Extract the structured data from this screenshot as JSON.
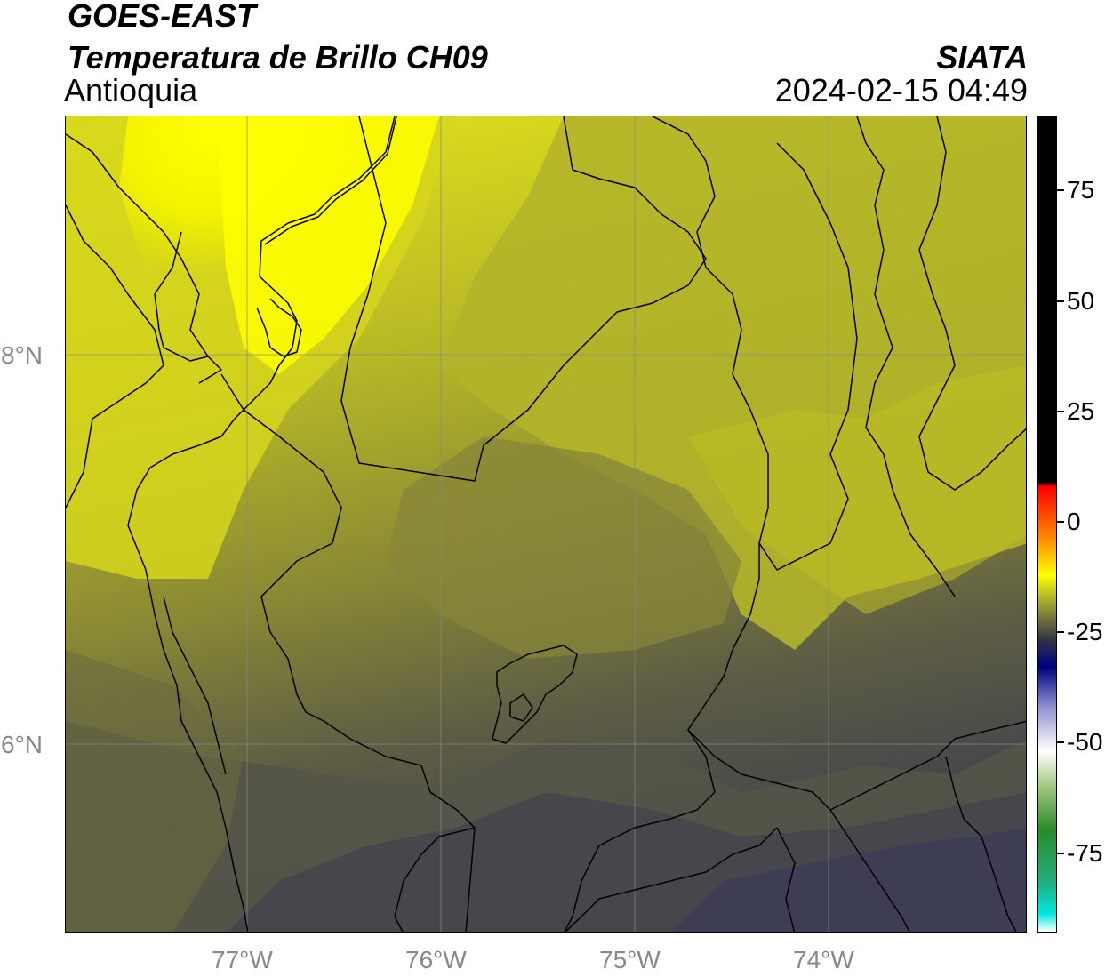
{
  "header": {
    "title": "GOES-EAST",
    "subtitle": "Temperatura de Brillo CH09",
    "region": "Antioquia",
    "brand": "SIATA",
    "timestamp": "2024-02-15 04:49"
  },
  "map": {
    "lat_labels": [
      "8°N",
      "6°N"
    ],
    "lon_labels": [
      "77°W",
      "76°W",
      "75°W",
      "74°W"
    ],
    "lon_range": [
      -77.94,
      -72.97
    ],
    "lat_range": [
      5.06,
      9.26
    ],
    "colors": {
      "bright_yellow": "#ffff00",
      "yellow": "#e8e800",
      "olive_light": "#c8c81e",
      "olive": "#a6a62c",
      "olive_dark": "#7e7e3a",
      "grey": "#5a5a44",
      "dark": "#46464c",
      "dark_blue": "#3c3c54",
      "border": "#000000",
      "grid": "#888888"
    }
  },
  "colorbar": {
    "ticks": [
      "75",
      "50",
      "25",
      "0",
      "-25",
      "-50",
      "-75"
    ],
    "tick_values": [
      75,
      50,
      25,
      0,
      -25,
      -50,
      -75
    ],
    "vmin": -93,
    "vmax": 92,
    "stops": [
      {
        "v": -93,
        "c": "#ffffff"
      },
      {
        "v": -89,
        "c": "#00e8e0"
      },
      {
        "v": -82,
        "c": "#20b080"
      },
      {
        "v": -70,
        "c": "#2a8a2a"
      },
      {
        "v": -60,
        "c": "#a0c880"
      },
      {
        "v": -52,
        "c": "#ffffff"
      },
      {
        "v": -42,
        "c": "#9090d0"
      },
      {
        "v": -33,
        "c": "#000080"
      },
      {
        "v": -27,
        "c": "#303048"
      },
      {
        "v": -18,
        "c": "#a8a830"
      },
      {
        "v": -12,
        "c": "#ffff00"
      },
      {
        "v": -4,
        "c": "#ff8c00"
      },
      {
        "v": 8,
        "c": "#ff0000"
      },
      {
        "v": 9,
        "c": "#000000"
      },
      {
        "v": 92,
        "c": "#000000"
      }
    ]
  }
}
